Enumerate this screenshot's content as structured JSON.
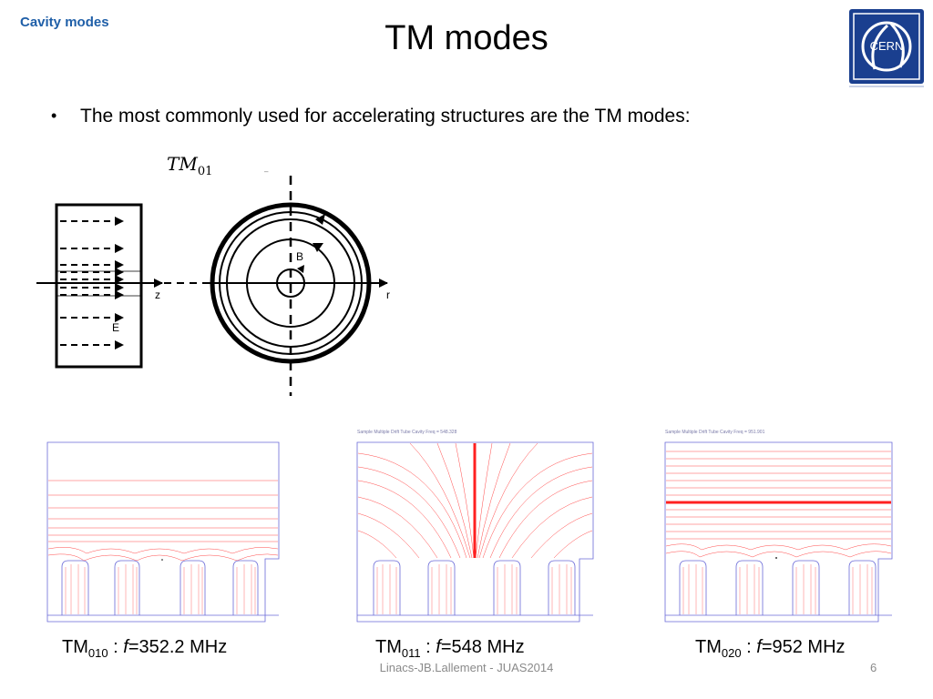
{
  "section_title": "Cavity modes",
  "slide_title": "TM modes",
  "bullet": "The most commonly used for accelerating structures are the TM modes:",
  "diagram": {
    "mode_label_base": "TM",
    "mode_label_sub": "01",
    "axis_z": "z",
    "axis_r": "r",
    "field_b": "B",
    "field_e": "E"
  },
  "plots": [
    {
      "header": "",
      "caption_base": "TM",
      "caption_sub": "010",
      "caption_sep": " : ",
      "caption_f": "f",
      "caption_value": "=352.2 MHz"
    },
    {
      "header": "Sample Multiple Drift Tube Cavity Freq = 548.328",
      "caption_base": "TM",
      "caption_sub": "011",
      "caption_sep": " : ",
      "caption_f": "f",
      "caption_value": "=548 MHz"
    },
    {
      "header": "Sample Multiple Drift Tube Cavity Freq = 951.901",
      "caption_base": "TM",
      "caption_sub": "020",
      "caption_sep": " : ",
      "caption_f": "f",
      "caption_value": "=952 MHz"
    }
  ],
  "footer": "Linacs-JB.Lallement - JUAS2014",
  "page_number": "6",
  "logo": {
    "text": "CERN",
    "color": "#1a3f8f"
  },
  "colors": {
    "section": "#1f5fa8",
    "field_line": "#ff4a4a",
    "outline": "#6a6ad8"
  }
}
